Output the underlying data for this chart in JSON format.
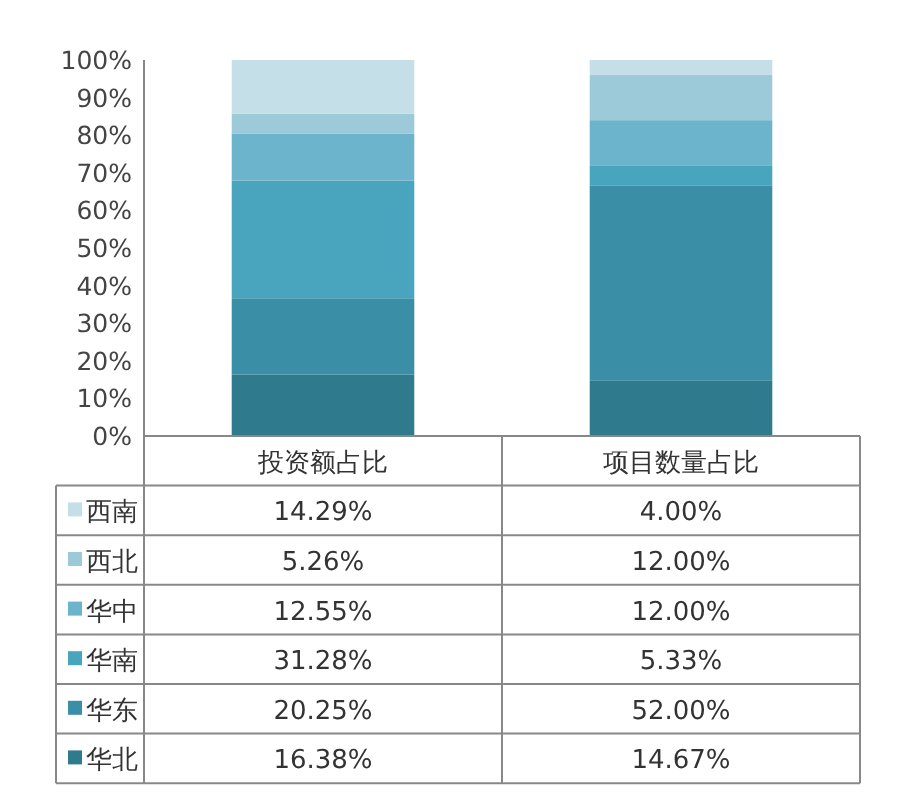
{
  "chart_data": {
    "type": "bar",
    "stacked": true,
    "categories": [
      "投资额占比",
      "项目数量占比"
    ],
    "ylim": [
      0,
      100
    ],
    "yticks": [
      {
        "value": 0,
        "label": "0%"
      },
      {
        "value": 10,
        "label": "10%"
      },
      {
        "value": 20,
        "label": "20%"
      },
      {
        "value": 30,
        "label": "30%"
      },
      {
        "value": 40,
        "label": "40%"
      },
      {
        "value": 50,
        "label": "50%"
      },
      {
        "value": 60,
        "label": "60%"
      },
      {
        "value": 70,
        "label": "70%"
      },
      {
        "value": 80,
        "label": "80%"
      },
      {
        "value": 90,
        "label": "90%"
      },
      {
        "value": 100,
        "label": "100%"
      }
    ],
    "legend": "bottom",
    "grid": false,
    "series": [
      {
        "name": "华北",
        "color": "#2f7a8c",
        "values": [
          16.38,
          14.67
        ],
        "value_labels": [
          "16.38%",
          "14.67%"
        ]
      },
      {
        "name": "华东",
        "color": "#3a8ea5",
        "values": [
          20.25,
          52.0
        ],
        "value_labels": [
          "20.25%",
          "52.00%"
        ]
      },
      {
        "name": "华南",
        "color": "#48a5bd",
        "values": [
          31.28,
          5.33
        ],
        "value_labels": [
          "31.28%",
          "5.33%"
        ]
      },
      {
        "name": "华中",
        "color": "#6bb4cb",
        "values": [
          12.55,
          12.0
        ],
        "value_labels": [
          "12.55%",
          "12.00%"
        ]
      },
      {
        "name": "西北",
        "color": "#9ccad9",
        "values": [
          5.26,
          12.0
        ],
        "value_labels": [
          "5.26%",
          "12.00%"
        ]
      },
      {
        "name": "西南",
        "color": "#c4dfe7",
        "values": [
          14.29,
          4.0
        ],
        "value_labels": [
          "14.29%",
          "4.00%"
        ]
      }
    ]
  }
}
